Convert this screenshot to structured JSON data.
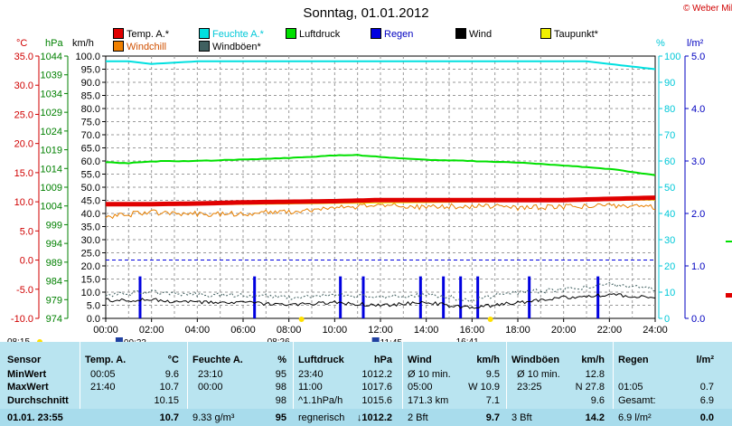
{
  "title": "Sonntag, 01.01.2012",
  "copyright": "© Weber Mike",
  "legend": [
    {
      "label": "Temp. A.*",
      "color": "#e00000",
      "text_color": "#000000"
    },
    {
      "label": "Feuchte A.*",
      "color": "#00e0e0",
      "text_color": "#00c8d8"
    },
    {
      "label": "Luftdruck",
      "color": "#00e000",
      "text_color": "#000000"
    },
    {
      "label": "Regen",
      "color": "#0000e0",
      "text_color": "#0000c0"
    },
    {
      "label": "Wind",
      "color": "#000000",
      "text_color": "#000000"
    },
    {
      "label": "Taupunkt*",
      "color": "#f0f000",
      "text_color": "#000000"
    },
    {
      "label": "Windchill",
      "color": "#f08000",
      "text_color": "#d05000"
    },
    {
      "label": "Windböen*",
      "color": "#406060",
      "text_color": "#000000"
    }
  ],
  "units": {
    "temp": "°C",
    "press": "hPa",
    "wind": "km/h",
    "hum": "%",
    "rain": "l/m²"
  },
  "chart_data": {
    "type": "line",
    "x_ticks": [
      "00:00",
      "02:00",
      "04:00",
      "06:00",
      "08:00",
      "10:00",
      "12:00",
      "14:00",
      "16:00",
      "18:00",
      "20:00",
      "22:00",
      "24:00"
    ],
    "axes": {
      "temp_c": {
        "ticks": [
          "35.0",
          "30.0",
          "25.0",
          "20.0",
          "15.0",
          "10.0",
          "5.0",
          "0.0",
          "-5.0",
          "-10.0"
        ],
        "range": [
          -10,
          35
        ]
      },
      "pressure_hpa": {
        "ticks": [
          "1044",
          "1039",
          "1034",
          "1029",
          "1024",
          "1019",
          "1014",
          "1009",
          "1004",
          "999",
          "994",
          "989",
          "984",
          "979",
          "974"
        ],
        "range": [
          974,
          1044
        ]
      },
      "wind_kmh": {
        "ticks": [
          "100.0",
          "95.0",
          "90.0",
          "85.0",
          "80.0",
          "75.0",
          "70.0",
          "65.0",
          "60.0",
          "55.0",
          "50.0",
          "45.0",
          "40.0",
          "35.0",
          "30.0",
          "25.0",
          "20.0",
          "15.0",
          "10.0",
          "5.0",
          "0.0"
        ],
        "range": [
          0,
          100
        ]
      },
      "humidity_pct": {
        "ticks": [
          "100",
          "90",
          "80",
          "70",
          "60",
          "50",
          "40",
          "30",
          "20",
          "10",
          "0"
        ],
        "range": [
          0,
          100
        ]
      },
      "rain_lm2": {
        "ticks": [
          "5.0",
          "4.0",
          "3.0",
          "2.0",
          "1.0",
          "0.0"
        ],
        "range": [
          0,
          5
        ]
      }
    },
    "time_markers": {
      "sunrise": "08:26",
      "sunset": "16:41",
      "moonrise": "11:45",
      "moonset": "00:33",
      "left_marker": "08:15"
    },
    "series": [
      {
        "name": "Temp. A.*",
        "axis": "temp_c",
        "x": [
          0,
          2,
          4,
          6,
          8,
          10,
          12,
          14,
          16,
          18,
          20,
          22,
          24
        ],
        "values": [
          9.6,
          9.6,
          9.7,
          9.9,
          10.0,
          10.1,
          10.3,
          10.3,
          10.3,
          10.3,
          10.3,
          10.5,
          10.7
        ]
      },
      {
        "name": "Feuchte A.*",
        "axis": "humidity_pct",
        "x": [
          0,
          1,
          2,
          4,
          6,
          8,
          10,
          12,
          14,
          16,
          18,
          20,
          21,
          22,
          23,
          24
        ],
        "values": [
          98,
          98,
          97,
          98,
          98,
          98,
          98,
          98,
          98,
          98,
          98,
          98,
          98,
          97,
          96,
          95
        ]
      },
      {
        "name": "Luftdruck",
        "axis": "pressure_hpa",
        "x": [
          0,
          1,
          2,
          4,
          6,
          8,
          10,
          11,
          12,
          14,
          16,
          18,
          20,
          22,
          24
        ],
        "values": [
          1015.7,
          1015.4,
          1015.9,
          1016.0,
          1016.4,
          1016.8,
          1017.5,
          1017.6,
          1017.1,
          1016.3,
          1016.0,
          1015.6,
          1014.8,
          1013.9,
          1012.2
        ]
      },
      {
        "name": "Windchill",
        "axis": "temp_c",
        "x": [
          0,
          2,
          4,
          6,
          8,
          10,
          12,
          14,
          16,
          18,
          20,
          22,
          24
        ],
        "values": [
          7.5,
          8.2,
          7.9,
          8.0,
          8.3,
          9.0,
          9.4,
          9.1,
          9.3,
          9.0,
          9.2,
          9.4,
          9.0
        ]
      },
      {
        "name": "Wind",
        "axis": "wind_kmh",
        "x": [
          0,
          2,
          4,
          6,
          8,
          10,
          12,
          14,
          16,
          18,
          20,
          22,
          24
        ],
        "values": [
          7,
          7,
          6,
          6,
          5,
          6,
          5,
          6,
          4,
          6,
          8,
          9,
          8
        ]
      },
      {
        "name": "Windböen*",
        "axis": "wind_kmh",
        "x": [
          0,
          2,
          4,
          6,
          8,
          10,
          12,
          14,
          16,
          18,
          20,
          22,
          24
        ],
        "values": [
          9,
          10,
          9,
          9,
          8,
          9,
          8,
          9,
          7,
          10,
          11,
          13,
          11
        ]
      },
      {
        "name": "Regen",
        "axis": "rain_lm2",
        "type": "bar",
        "x": [
          1.5,
          6.5,
          10.25,
          11.25,
          13.75,
          14.75,
          15.5,
          16.25,
          18.5,
          21.5
        ],
        "values": [
          0.8,
          0.8,
          0.8,
          0.8,
          0.8,
          0.8,
          0.8,
          0.8,
          0.8,
          0.8
        ]
      },
      {
        "name": "Taupunkt*",
        "axis": "temp_c",
        "x": [
          0,
          24
        ],
        "values": [
          9.3,
          10.3
        ]
      }
    ]
  },
  "table": {
    "headers": [
      {
        "label": "Sensor",
        "unit": ""
      },
      {
        "label": "Temp. A.",
        "unit": "°C"
      },
      {
        "label": "Feuchte A.",
        "unit": "%"
      },
      {
        "label": "Luftdruck",
        "unit": "hPa"
      },
      {
        "label": "Wind",
        "unit": "km/h"
      },
      {
        "label": "Windböen",
        "unit": "km/h"
      },
      {
        "label": "Regen",
        "unit": "l/m²"
      }
    ],
    "row_labels": [
      "MinWert",
      "MaxWert",
      "Durchschnitt",
      "01.01. 23:55"
    ],
    "rows": [
      [
        [
          "00:05",
          "9.6"
        ],
        [
          "23:10",
          "95"
        ],
        [
          "23:40",
          "1012.2"
        ],
        [
          "Ø 10 min.",
          "9.5"
        ],
        [
          "Ø 10 min.",
          "12.8"
        ],
        [
          "",
          ""
        ]
      ],
      [
        [
          "21:40",
          "10.7"
        ],
        [
          "00:00",
          "98"
        ],
        [
          "11:00",
          "1017.6"
        ],
        [
          "05:00",
          "W 10.9"
        ],
        [
          "23:25",
          "N 27.8"
        ],
        [
          "01:05",
          "0.7"
        ]
      ],
      [
        [
          "",
          "10.15"
        ],
        [
          "",
          "98"
        ],
        [
          "^1.1hPa/h",
          "1015.6"
        ],
        [
          "171.3 km",
          "7.1"
        ],
        [
          "",
          "9.6"
        ],
        [
          "Gesamt:",
          "6.9"
        ]
      ],
      [
        [
          "",
          "10.7"
        ],
        [
          "9.33 g/m³",
          "95"
        ],
        [
          "regnerisch",
          "↓1012.2"
        ],
        [
          "2 Bft",
          "9.7"
        ],
        [
          "3 Bft",
          "14.2"
        ],
        [
          "6.9 l/m²",
          "0.0"
        ]
      ]
    ]
  }
}
